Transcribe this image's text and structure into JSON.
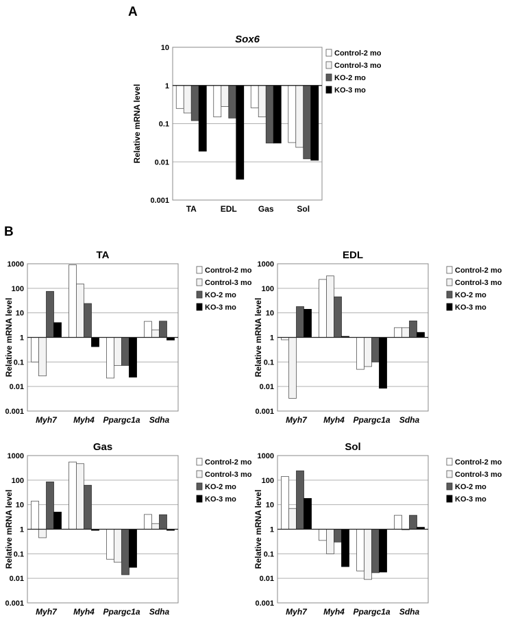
{
  "panel_labels": {
    "a": "A",
    "b": "B"
  },
  "series": [
    {
      "name": "Control-2 mo",
      "fill": "#ffffff"
    },
    {
      "name": "Control-3 mo",
      "fill": "#f3f3f3"
    },
    {
      "name": "KO-2 mo",
      "fill": "#5a5a5a"
    },
    {
      "name": "KO-3 mo",
      "fill": "#000000"
    }
  ],
  "chart_data": [
    {
      "type": "bar",
      "title": "Sox6",
      "ylabel": "Relative mRNA level",
      "yscale": "log",
      "ylim": [
        0.001,
        10
      ],
      "yticks": [
        "0.001",
        "0.01",
        "0.1",
        "1",
        "10"
      ],
      "baseline": 1,
      "categories": [
        "TA",
        "EDL",
        "Gas",
        "Sol"
      ],
      "categories_italic": false,
      "series": [
        {
          "name": "Control-2 mo",
          "values": [
            0.25,
            0.15,
            0.26,
            0.032
          ]
        },
        {
          "name": "Control-3 mo",
          "values": [
            0.19,
            0.28,
            0.15,
            0.024
          ]
        },
        {
          "name": "KO-2 mo",
          "values": [
            0.12,
            0.14,
            0.031,
            0.012
          ]
        },
        {
          "name": "KO-3 mo",
          "values": [
            0.019,
            0.0035,
            0.031,
            0.011
          ]
        }
      ]
    },
    {
      "type": "bar",
      "title": "TA",
      "ylabel": "Relative mRNA level",
      "yscale": "log",
      "ylim": [
        0.001,
        1000
      ],
      "yticks": [
        "0.001",
        "0.01",
        "0.1",
        "1",
        "10",
        "100",
        "1000"
      ],
      "baseline": 1,
      "categories": [
        "Myh7",
        "Myh4",
        "Ppargc1a",
        "Sdha"
      ],
      "categories_italic": true,
      "series": [
        {
          "name": "Control-2 mo",
          "values": [
            0.1,
            900,
            0.022,
            4.5
          ]
        },
        {
          "name": "Control-3 mo",
          "values": [
            0.027,
            150,
            0.072,
            2.0
          ]
        },
        {
          "name": "KO-2 mo",
          "values": [
            75,
            24,
            0.072,
            4.6
          ]
        },
        {
          "name": "KO-3 mo",
          "values": [
            4.0,
            0.42,
            0.024,
            0.78
          ]
        }
      ]
    },
    {
      "type": "bar",
      "title": "EDL",
      "ylabel": "Relative mRNA level",
      "yscale": "log",
      "ylim": [
        0.001,
        1000
      ],
      "yticks": [
        "0.001",
        "0.01",
        "0.1",
        "1",
        "10",
        "100",
        "1000"
      ],
      "baseline": 1,
      "categories": [
        "Myh7",
        "Myh4",
        "Ppargc1a",
        "Sdha"
      ],
      "categories_italic": true,
      "series": [
        {
          "name": "Control-2 mo",
          "values": [
            0.8,
            230,
            0.05,
            2.5
          ]
        },
        {
          "name": "Control-3 mo",
          "values": [
            0.0033,
            320,
            0.065,
            2.5
          ]
        },
        {
          "name": "KO-2 mo",
          "values": [
            18,
            45,
            0.1,
            4.7
          ]
        },
        {
          "name": "KO-3 mo",
          "values": [
            14,
            1.1,
            0.0085,
            1.6
          ]
        }
      ]
    },
    {
      "type": "bar",
      "title": "Gas",
      "ylabel": "Relative mRNA level",
      "yscale": "log",
      "ylim": [
        0.001,
        1000
      ],
      "yticks": [
        "0.001",
        "0.01",
        "0.1",
        "1",
        "10",
        "100",
        "1000"
      ],
      "baseline": 1,
      "categories": [
        "Myh7",
        "Myh4",
        "Ppargc1a",
        "Sdha"
      ],
      "categories_italic": true,
      "series": [
        {
          "name": "Control-2 mo",
          "values": [
            14,
            550,
            0.06,
            4.0
          ]
        },
        {
          "name": "Control-3 mo",
          "values": [
            0.45,
            470,
            0.045,
            1.7
          ]
        },
        {
          "name": "KO-2 mo",
          "values": [
            85,
            62,
            0.014,
            3.9
          ]
        },
        {
          "name": "KO-3 mo",
          "values": [
            5.0,
            0.9,
            0.028,
            0.9
          ]
        }
      ]
    },
    {
      "type": "bar",
      "title": "Sol",
      "ylabel": "Relative mRNA level",
      "yscale": "log",
      "ylim": [
        0.001,
        1000
      ],
      "yticks": [
        "0.001",
        "0.01",
        "0.1",
        "1",
        "10",
        "100",
        "1000"
      ],
      "baseline": 1,
      "categories": [
        "Myh7",
        "Myh4",
        "Ppargc1a",
        "Sdha"
      ],
      "categories_italic": true,
      "series": [
        {
          "name": "Control-2 mo",
          "values": [
            140,
            0.35,
            0.02,
            3.7
          ]
        },
        {
          "name": "Control-3 mo",
          "values": [
            7.0,
            0.1,
            0.009,
            1.0
          ]
        },
        {
          "name": "KO-2 mo",
          "values": [
            240,
            0.3,
            0.017,
            3.7
          ]
        },
        {
          "name": "KO-3 mo",
          "values": [
            18,
            0.03,
            0.018,
            1.2
          ]
        }
      ]
    }
  ]
}
